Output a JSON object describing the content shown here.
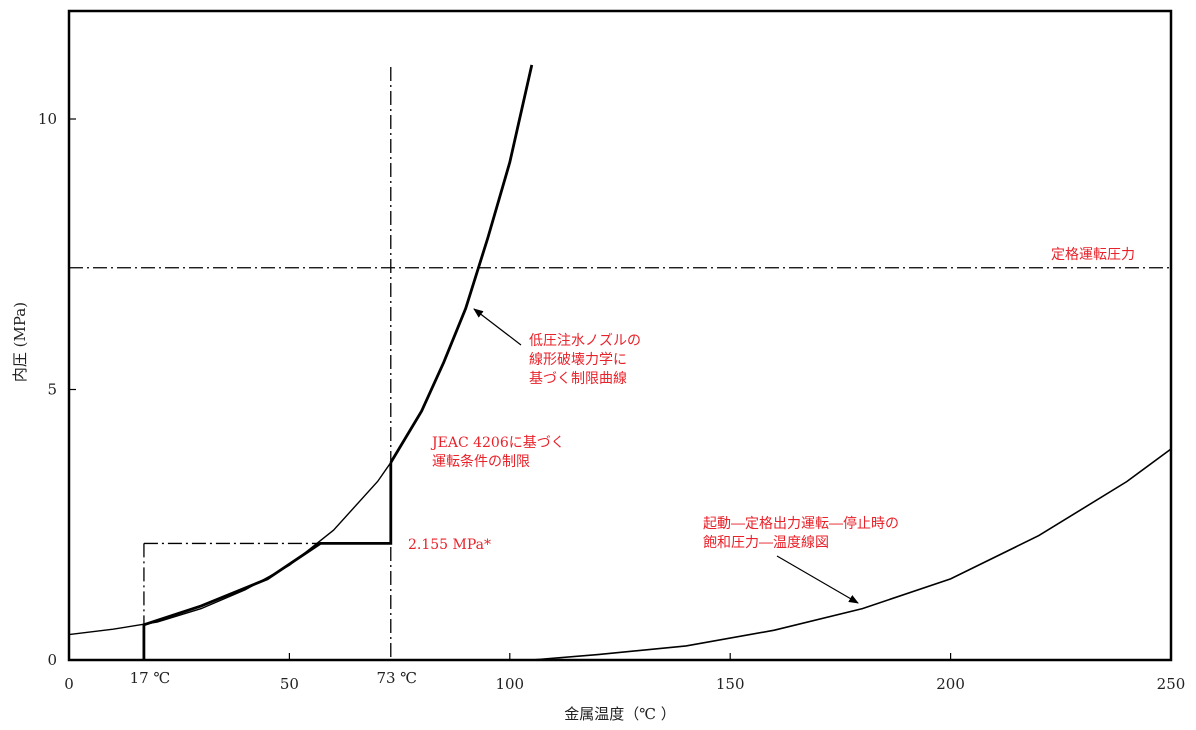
{
  "chart_data": {
    "type": "line",
    "xlabel": "金属温度（℃ ）",
    "ylabel": "内圧 (MPa)",
    "xlim": [
      0,
      250
    ],
    "ylim": [
      0,
      12
    ],
    "x_ticks": [
      0,
      50,
      100,
      150,
      200,
      250
    ],
    "y_ticks": [
      0,
      5,
      10
    ],
    "extra_x_ticks": [
      {
        "value": 17,
        "label": "17 ℃",
        "color": "#222222"
      },
      {
        "value": 73,
        "label": "73 ℃",
        "color": "#e8222a"
      }
    ],
    "series": [
      {
        "name": "低圧注水ノズルの線形破壊力学に基づく制限曲線",
        "x": [
          0,
          10,
          20,
          30,
          40,
          50,
          60,
          70,
          73,
          80,
          85,
          90,
          95,
          100,
          105
        ],
        "y": [
          0.47,
          0.57,
          0.7,
          0.95,
          1.3,
          1.75,
          2.4,
          3.3,
          3.65,
          4.6,
          5.5,
          6.5,
          7.8,
          9.2,
          11.0
        ]
      },
      {
        "name": "起動―定格出力運転―停止時の飽和圧力―温度線図",
        "x": [
          105,
          120,
          140,
          160,
          180,
          200,
          220,
          240,
          250
        ],
        "y": [
          0.0,
          0.1,
          0.26,
          0.55,
          0.95,
          1.5,
          2.3,
          3.3,
          3.9
        ]
      },
      {
        "name": "JEAC 4206に基づく運転条件の制限",
        "x": [
          17,
          17,
          30,
          45,
          57,
          73,
          73
        ],
        "y": [
          0.0,
          0.65,
          1.0,
          1.5,
          2.155,
          2.155,
          3.65
        ]
      }
    ],
    "reference_lines": [
      {
        "orientation": "horizontal",
        "value": 7.25,
        "label": "定格運転圧力"
      },
      {
        "orientation": "vertical",
        "value": 73
      },
      {
        "orientation": "vertical",
        "value": 17
      },
      {
        "orientation": "horizontal",
        "value": 2.155,
        "label": "2.155 MPa*"
      }
    ],
    "annotations": [
      {
        "lines": [
          "低圧注水ノズルの",
          "線形破壊力学に",
          "基づく制限曲線"
        ]
      },
      {
        "lines": [
          "JEAC 4206に基づく",
          "運転条件の制限"
        ]
      },
      {
        "lines": [
          "起動―定格出力運転―停止時の",
          "飽和圧力―温度線図"
        ]
      }
    ],
    "annotation_color": "#e8222a",
    "line_color": "#000000",
    "grid": false
  }
}
